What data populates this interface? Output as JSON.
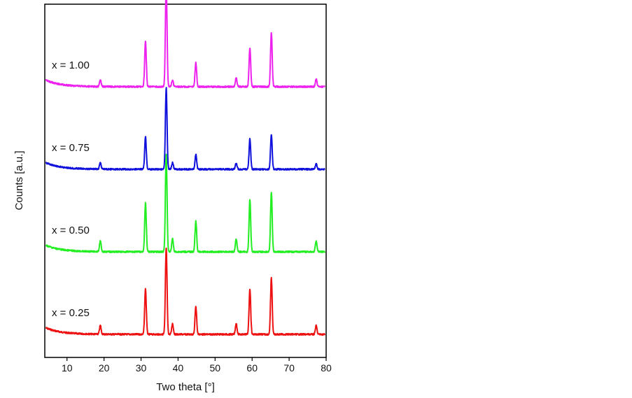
{
  "chart_data": {
    "type": "line",
    "xlabel": "Two theta [°]",
    "ylabel": "Counts [a.u.]",
    "xlim": [
      4,
      80
    ],
    "x_ticks": [
      10,
      20,
      30,
      40,
      50,
      60,
      70,
      80
    ],
    "y_ticks_shown": false,
    "grid": false,
    "legend": "none",
    "series": [
      {
        "name": "x = 0.25",
        "color": "#ee1111",
        "baseline_counts": 0.0,
        "peaks": [
          [
            19.0,
            8
          ],
          [
            31.2,
            42
          ],
          [
            36.8,
            80
          ],
          [
            38.5,
            10
          ],
          [
            44.8,
            26
          ],
          [
            55.7,
            10
          ],
          [
            59.4,
            42
          ],
          [
            65.2,
            52
          ],
          [
            77.3,
            8
          ]
        ]
      },
      {
        "name": "x = 0.50",
        "color": "#22ee22",
        "baseline_counts": 1.0,
        "peaks": [
          [
            19.0,
            10
          ],
          [
            31.2,
            45
          ],
          [
            36.8,
            90
          ],
          [
            38.5,
            12
          ],
          [
            44.8,
            28
          ],
          [
            55.7,
            12
          ],
          [
            59.4,
            48
          ],
          [
            65.2,
            55
          ],
          [
            77.3,
            10
          ]
        ]
      },
      {
        "name": "x = 0.75",
        "color": "#1111dd",
        "baseline_counts": 2.0,
        "peaks": [
          [
            19.0,
            6
          ],
          [
            31.2,
            30
          ],
          [
            36.8,
            75
          ],
          [
            38.5,
            6
          ],
          [
            44.8,
            14
          ],
          [
            55.7,
            6
          ],
          [
            59.4,
            28
          ],
          [
            65.2,
            32
          ],
          [
            77.3,
            5
          ]
        ]
      },
      {
        "name": "x = 1.00",
        "color": "#ee22ee",
        "baseline_counts": 3.0,
        "peaks": [
          [
            19.0,
            6
          ],
          [
            31.2,
            42
          ],
          [
            36.8,
            95
          ],
          [
            38.5,
            6
          ],
          [
            44.8,
            22
          ],
          [
            55.7,
            8
          ],
          [
            59.4,
            36
          ],
          [
            65.2,
            50
          ],
          [
            77.3,
            7
          ]
        ]
      }
    ]
  }
}
